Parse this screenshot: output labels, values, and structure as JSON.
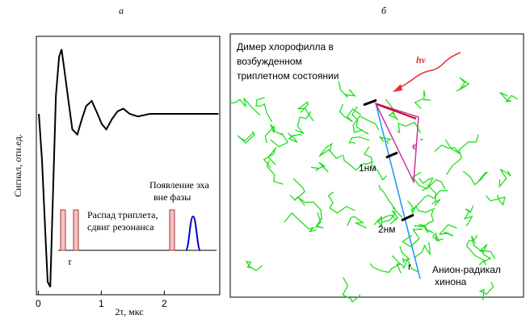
{
  "chart_data": {
    "type": "line",
    "panel_label": "а",
    "xlabel": "2τ, мкс",
    "ylabel": "Сигнал, отн.ед.",
    "x": [
      0.01,
      0.06,
      0.12,
      0.15,
      0.19,
      0.23,
      0.28,
      0.33,
      0.37,
      0.42,
      0.49,
      0.54,
      0.62,
      0.68,
      0.76,
      0.85,
      0.94,
      1.01,
      1.08,
      1.17,
      1.26,
      1.35,
      1.45,
      1.58,
      1.77,
      1.96,
      2.22,
      2.47,
      2.86
    ],
    "series": [
      {
        "color": "#000000",
        "values": [
          0.7,
          0.52,
          0.2,
          0.05,
          0.03,
          0.36,
          0.77,
          0.92,
          0.95,
          0.86,
          0.73,
          0.64,
          0.62,
          0.67,
          0.73,
          0.75,
          0.7,
          0.66,
          0.64,
          0.68,
          0.71,
          0.72,
          0.7,
          0.69,
          0.7,
          0.7,
          0.7,
          0.7,
          0.7
        ]
      }
    ],
    "xlim": [
      -0.03,
      2.88
    ],
    "xticks": [
      0,
      1,
      2
    ],
    "ylim": [
      0,
      1
    ],
    "pulse_label": "τ",
    "decay_lines": [
      "Распад триплета,",
      "сдвиг резонанса"
    ],
    "echo_lines": [
      "Появление эха",
      "вне фазы"
    ]
  },
  "diagram": {
    "panel_label": "б",
    "title_lines": [
      "Димер хлорофилла в",
      "возбужденном",
      "триплетном состоянии"
    ],
    "photon": "hν",
    "electron": "e",
    "electron_sup": "-",
    "distance_1": "1нм",
    "distance_2": "2нм",
    "r": "r",
    "quinone_lines": [
      "Анион-радикал",
      "хинона"
    ]
  }
}
